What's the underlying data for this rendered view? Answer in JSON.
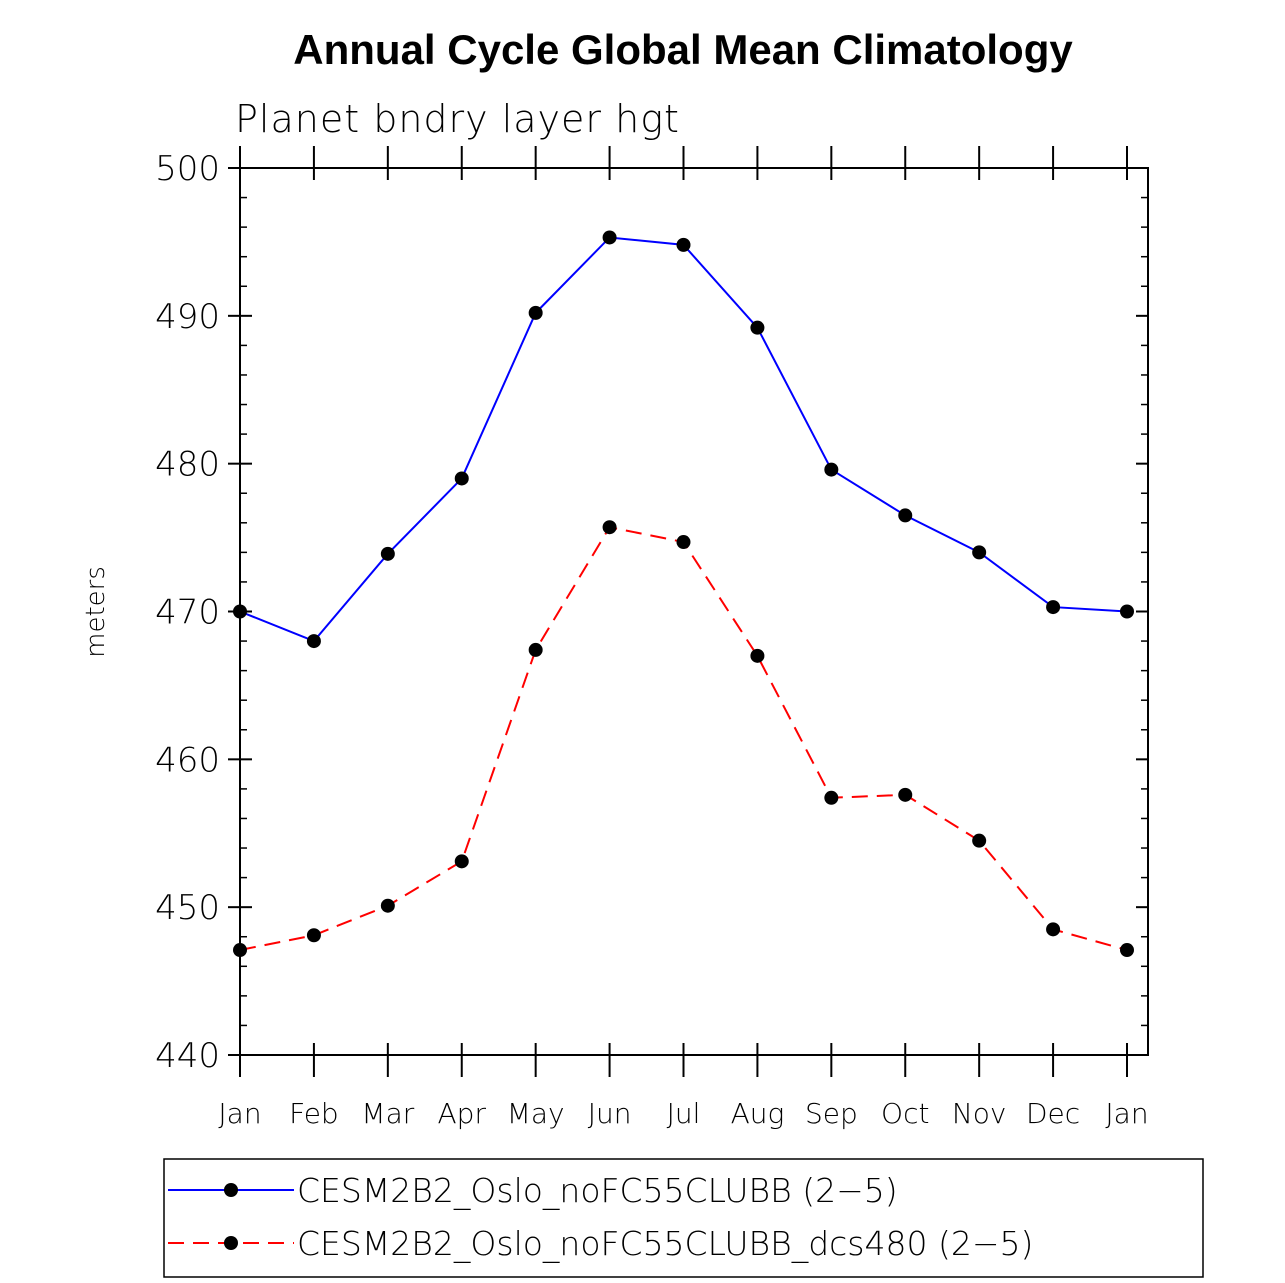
{
  "chart_data": {
    "type": "line",
    "title": "Annual Cycle Global Mean Climatology",
    "subtitle": "Planet bndry layer hgt",
    "xlabel": "",
    "ylabel": "meters",
    "categories": [
      "Jan",
      "Feb",
      "Mar",
      "Apr",
      "May",
      "Jun",
      "Jul",
      "Aug",
      "Sep",
      "Oct",
      "Nov",
      "Dec",
      "Jan"
    ],
    "ylim": [
      440,
      500
    ],
    "yticks": [
      440,
      450,
      460,
      470,
      480,
      490,
      500
    ],
    "grid": false,
    "legend_position": "bottom",
    "series": [
      {
        "name": "CESM2B2_Oslo_noFC55CLUBB (2−5)",
        "color": "#0000ff",
        "line_style": "solid",
        "marker": "filled-circle",
        "values": [
          470.0,
          468.0,
          473.9,
          479.0,
          490.2,
          495.3,
          494.8,
          489.2,
          479.6,
          476.5,
          474.0,
          470.3,
          470.0
        ]
      },
      {
        "name": "CESM2B2_Oslo_noFC55CLUBB_dcs480 (2−5)",
        "color": "#ff0000",
        "line_style": "dashed",
        "marker": "filled-circle",
        "values": [
          447.1,
          448.1,
          450.1,
          453.1,
          467.4,
          475.7,
          474.7,
          467.0,
          457.4,
          457.6,
          454.5,
          448.5,
          447.1
        ]
      }
    ]
  }
}
